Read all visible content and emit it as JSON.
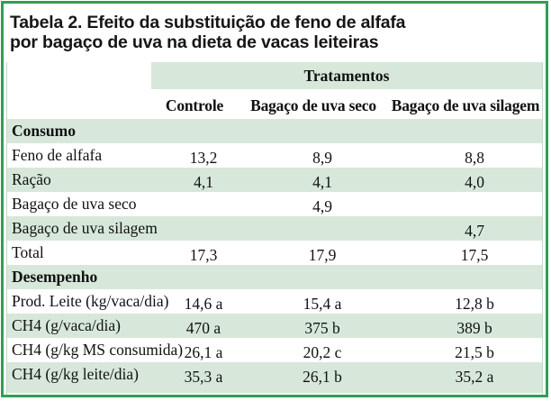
{
  "title": {
    "line1": "Tabela 2. Efeito da substituição de feno de alfafa",
    "line2": "por bagaço de uva na dieta de vacas leiteiras"
  },
  "header": {
    "group": "Tratamentos",
    "columns": [
      "Controle",
      "Bagaço de uva seco",
      "Bagaço de uva silagem"
    ]
  },
  "sections": [
    {
      "name": "Consumo",
      "rows": [
        {
          "label": "Feno de alfafa",
          "values": [
            "13,2",
            "8,9",
            "8,8"
          ]
        },
        {
          "label": "Ração",
          "values": [
            "4,1",
            "4,1",
            "4,0"
          ]
        },
        {
          "label": "Bagaço de uva seco",
          "values": [
            "",
            "4,9",
            ""
          ]
        },
        {
          "label": "Bagaço de uva silagem",
          "values": [
            "",
            "",
            "4,7"
          ]
        },
        {
          "label": "Total",
          "values": [
            "17,3",
            "17,9",
            "17,5"
          ]
        }
      ]
    },
    {
      "name": "Desempenho",
      "rows": [
        {
          "label": "Prod. Leite (kg/vaca/dia)",
          "values": [
            "14,6 a",
            "15,4 a",
            "12,8 b"
          ]
        },
        {
          "label": "CH4 (g/vaca/dia)",
          "values": [
            "470 a",
            "375 b",
            "389 b"
          ]
        },
        {
          "label": "CH4 (g/kg MS consumida)",
          "values": [
            "26,1 a",
            "20,2 c",
            "21,5 b"
          ]
        },
        {
          "label": "CH4 (g/kg leite/dia)",
          "values": [
            "35,3 a",
            "26,1 b",
            "35,2 a"
          ]
        }
      ]
    }
  ],
  "colors": {
    "frame_green": "#2f9f55",
    "row_green": "#d7e8da",
    "side_line": "#c4d8c7",
    "text": "#161616"
  }
}
